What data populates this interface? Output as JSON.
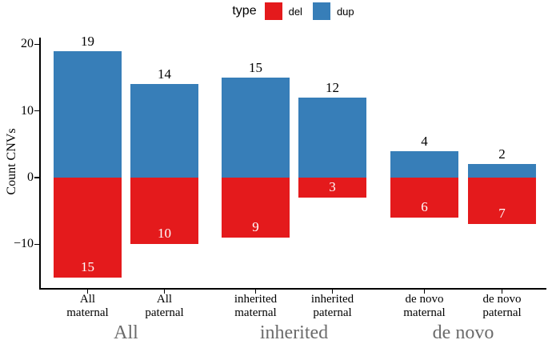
{
  "chart_data": {
    "type": "bar",
    "orientation": "diverging-stacked",
    "title": "",
    "xlabel": "",
    "ylabel": "Count CNVs",
    "ylim": [
      -15,
      20
    ],
    "grid": false,
    "legend": {
      "title": "type",
      "position": "top",
      "items": [
        {
          "label": "del",
          "color": "#E41A1C"
        },
        {
          "label": "dup",
          "color": "#377EB8"
        }
      ]
    },
    "series_colors": {
      "del": "#E41A1C",
      "dup": "#377EB8"
    },
    "yticks": [
      {
        "value": 20,
        "label": "20"
      },
      {
        "value": 10,
        "label": "10"
      },
      {
        "value": 0,
        "label": "0"
      },
      {
        "value": -10,
        "label": "−10"
      }
    ],
    "groups": [
      {
        "label": "All",
        "bars": [
          {
            "category_lines": [
              "All",
              "maternal"
            ],
            "dup": 19,
            "del": 15
          },
          {
            "category_lines": [
              "All",
              "paternal"
            ],
            "dup": 14,
            "del": 10
          }
        ]
      },
      {
        "label": "inherited",
        "bars": [
          {
            "category_lines": [
              "inherited",
              "maternal"
            ],
            "dup": 15,
            "del": 9
          },
          {
            "category_lines": [
              "inherited",
              "paternal"
            ],
            "dup": 12,
            "del": 3
          }
        ]
      },
      {
        "label": "de novo",
        "bars": [
          {
            "category_lines": [
              "de novo",
              "maternal"
            ],
            "dup": 4,
            "del": 6
          },
          {
            "category_lines": [
              "de novo",
              "paternal"
            ],
            "dup": 2,
            "del": 7
          }
        ]
      }
    ],
    "label_colors": {
      "dup_count": "#000000",
      "del_count": "#ffffff",
      "group": "#6b6b6b"
    }
  }
}
